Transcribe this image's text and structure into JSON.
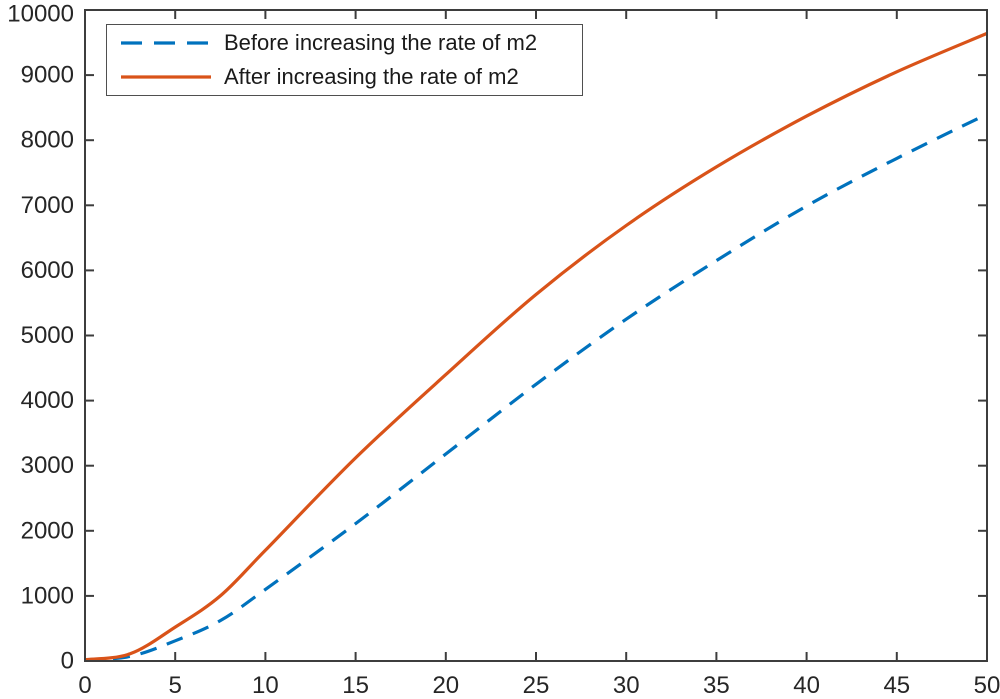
{
  "figure": {
    "background": "#ffffff",
    "axes_color": "#3d3d3d",
    "tick_label_color": "#262626",
    "legend": {
      "border_color": "#4f4f4f",
      "background": "#ffffff",
      "entries": [
        {
          "label": "Before increasing the rate of m2",
          "color": "#0072BD",
          "style": "dashed"
        },
        {
          "label": "After increasing the rate of m2",
          "color": "#D95319",
          "style": "solid"
        }
      ]
    }
  },
  "chart_data": {
    "type": "line",
    "title": "",
    "xlabel": "",
    "ylabel": "",
    "xlim": [
      0,
      50
    ],
    "ylim": [
      0,
      10000
    ],
    "x_ticks": [
      0,
      5,
      10,
      15,
      20,
      25,
      30,
      35,
      40,
      45,
      50
    ],
    "y_ticks": [
      0,
      1000,
      2000,
      3000,
      4000,
      5000,
      6000,
      7000,
      8000,
      9000,
      10000
    ],
    "grid": false,
    "box": true,
    "legend_position": "top-left-inside",
    "x": [
      0,
      2.5,
      5,
      7.5,
      10,
      15,
      20,
      25,
      30,
      35,
      40,
      45,
      50
    ],
    "series": [
      {
        "name": "Before increasing the rate of m2",
        "color": "#0072BD",
        "style": "dashed",
        "values": [
          20,
          70,
          310,
          620,
          1100,
          2110,
          3180,
          4250,
          5250,
          6150,
          6990,
          7720,
          8400
        ]
      },
      {
        "name": "After increasing the rate of m2",
        "color": "#D95319",
        "style": "solid",
        "values": [
          20,
          110,
          520,
          1000,
          1700,
          3120,
          4400,
          5630,
          6690,
          7590,
          8370,
          9050,
          9640
        ]
      }
    ]
  }
}
